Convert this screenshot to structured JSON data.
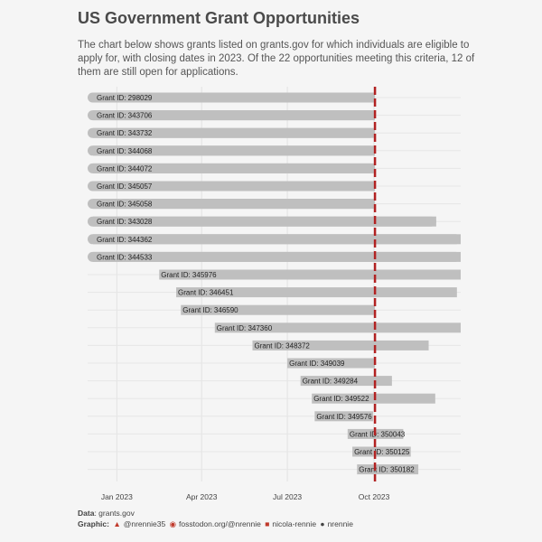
{
  "title": "US Government Grant Opportunities",
  "subtitle": "The chart below shows grants listed on grants.gov for which individuals are eligible to apply for, with closing dates in 2023. Of the 22 opportunities meeting this criteria, 12 of them are still open for applications.",
  "caption": {
    "data_label": "Data",
    "data_value": "grants.gov",
    "graphic_label": "Graphic:",
    "twitter": "@nrennie35",
    "mastodon": "fosstodon.org/@nrennie",
    "linkedin": "nicola-rennie",
    "github": "nrennie"
  },
  "chart_data": {
    "type": "bar",
    "orientation": "horizontal-range",
    "title": "US Government Grant Opportunities",
    "x_axis": {
      "ticks": [
        "Jan 2023",
        "Apr 2023",
        "Jul 2023",
        "Oct 2023"
      ],
      "tick_values": [
        "2023-01-01",
        "2023-04-01",
        "2023-07-01",
        "2023-10-01"
      ],
      "range": [
        "2022-12-01",
        "2024-01-01"
      ]
    },
    "reference_line": {
      "date": "2023-10-02",
      "color": "#b22222",
      "style": "dashed"
    },
    "bar_color": "#bfbfbf",
    "series": [
      {
        "label": "Grant ID: 298029",
        "start": "2022-12-01",
        "end": "2023-10-02"
      },
      {
        "label": "Grant ID: 343706",
        "start": "2022-12-01",
        "end": "2023-10-02"
      },
      {
        "label": "Grant ID: 343732",
        "start": "2022-12-01",
        "end": "2023-10-02"
      },
      {
        "label": "Grant ID: 344068",
        "start": "2022-12-01",
        "end": "2023-10-02"
      },
      {
        "label": "Grant ID: 344072",
        "start": "2022-12-01",
        "end": "2023-10-02"
      },
      {
        "label": "Grant ID: 345057",
        "start": "2022-12-01",
        "end": "2023-10-02"
      },
      {
        "label": "Grant ID: 345058",
        "start": "2022-12-01",
        "end": "2023-10-02"
      },
      {
        "label": "Grant ID: 343028",
        "start": "2022-12-01",
        "end": "2023-12-06"
      },
      {
        "label": "Grant ID: 344362",
        "start": "2022-12-01",
        "end": "2024-01-01"
      },
      {
        "label": "Grant ID: 344533",
        "start": "2022-12-01",
        "end": "2024-01-01"
      },
      {
        "label": "Grant ID: 345976",
        "start": "2023-02-15",
        "end": "2024-01-01"
      },
      {
        "label": "Grant ID: 346451",
        "start": "2023-03-05",
        "end": "2023-12-28"
      },
      {
        "label": "Grant ID: 346590",
        "start": "2023-03-10",
        "end": "2023-10-02"
      },
      {
        "label": "Grant ID: 347360",
        "start": "2023-04-15",
        "end": "2024-01-01"
      },
      {
        "label": "Grant ID: 348372",
        "start": "2023-05-25",
        "end": "2023-11-28"
      },
      {
        "label": "Grant ID: 349039",
        "start": "2023-07-01",
        "end": "2023-10-02"
      },
      {
        "label": "Grant ID: 349284",
        "start": "2023-07-15",
        "end": "2023-10-20"
      },
      {
        "label": "Grant ID: 349522",
        "start": "2023-07-27",
        "end": "2023-12-05"
      },
      {
        "label": "Grant ID: 349576",
        "start": "2023-07-30",
        "end": "2023-09-30"
      },
      {
        "label": "Grant ID: 350043",
        "start": "2023-09-03",
        "end": "2023-11-01"
      },
      {
        "label": "Grant ID: 350125",
        "start": "2023-09-08",
        "end": "2023-11-09"
      },
      {
        "label": "Grant ID: 350182",
        "start": "2023-09-13",
        "end": "2023-11-17"
      }
    ]
  }
}
